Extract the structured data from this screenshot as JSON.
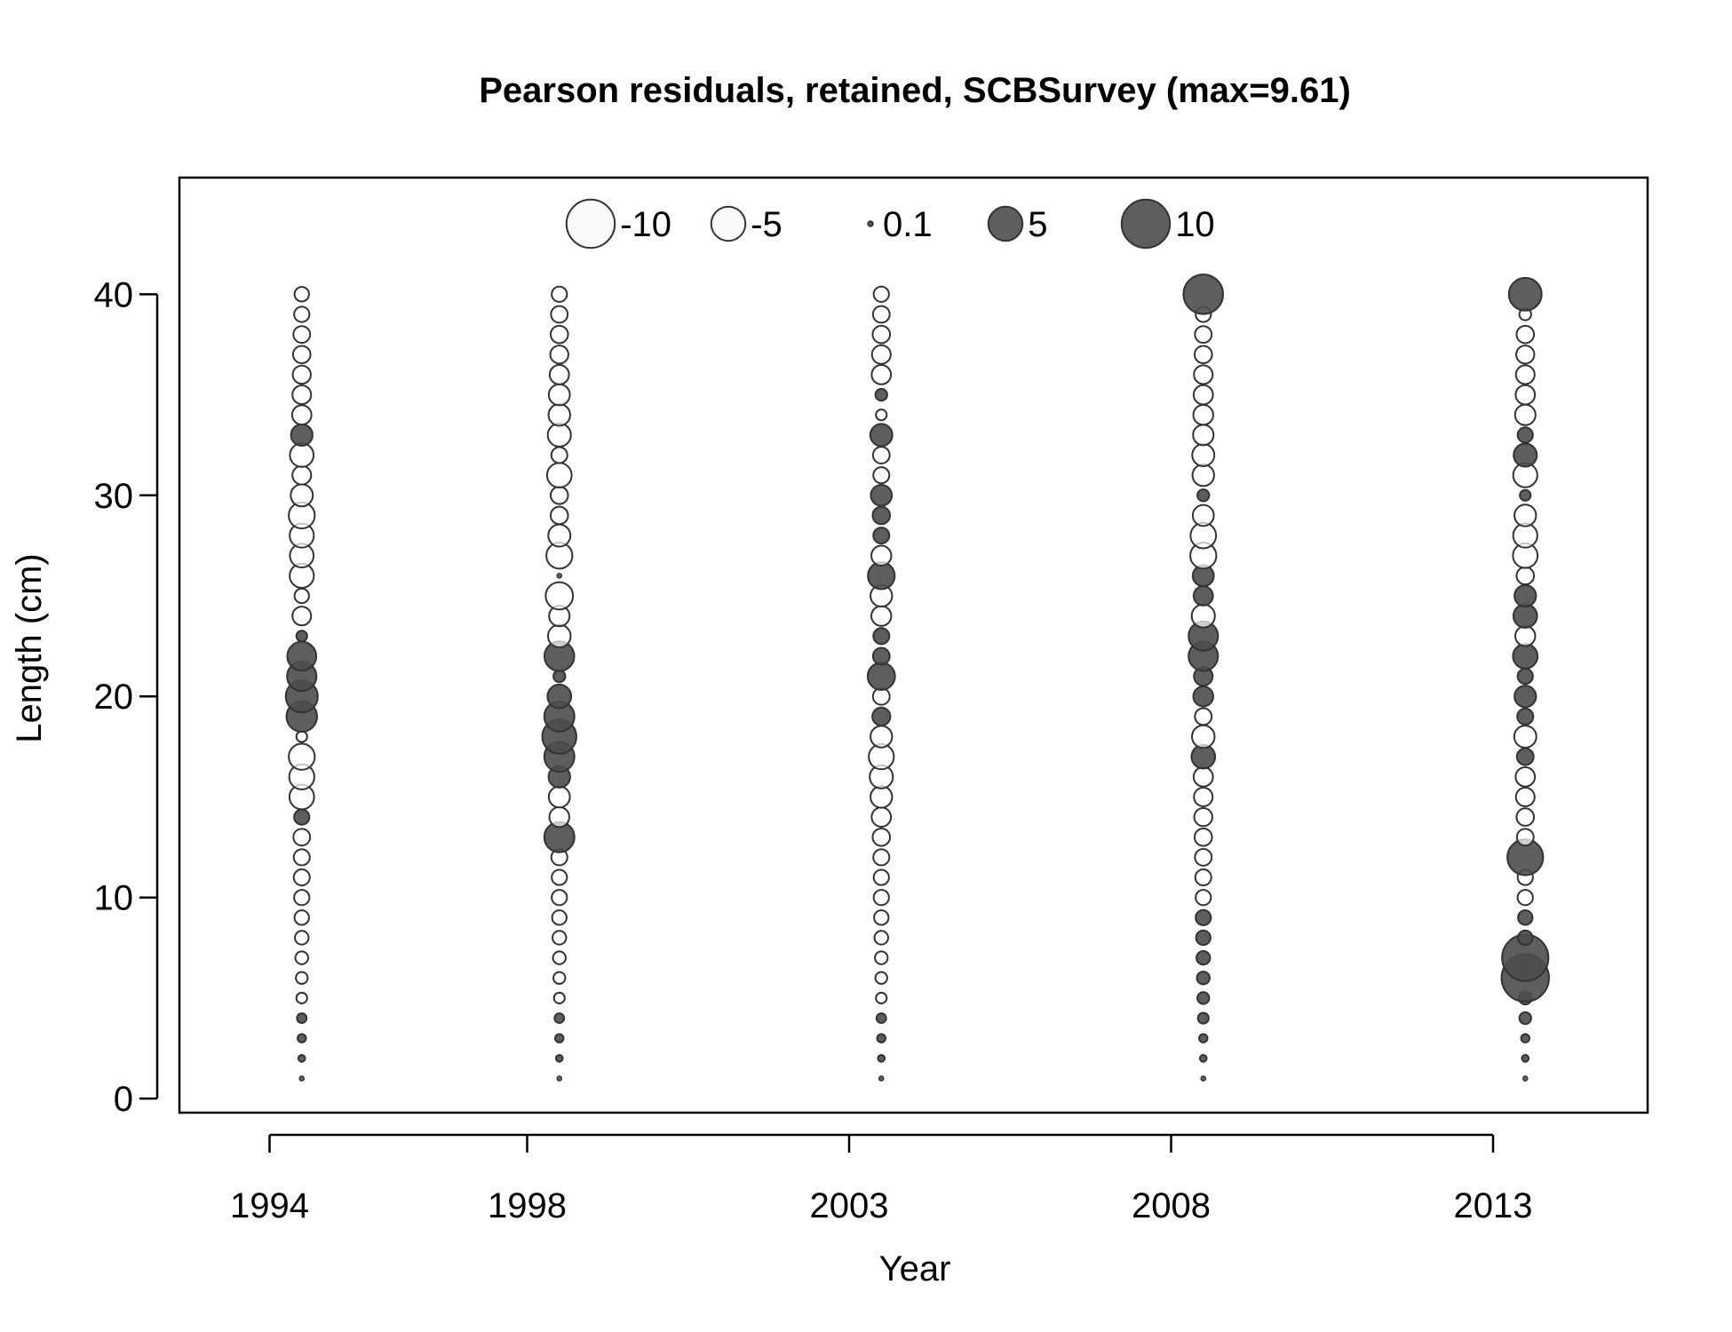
{
  "chart_data": {
    "type": "scatter",
    "subtype": "bubble",
    "title": "Pearson residuals, retained, SCBSurvey (max=9.61)",
    "xlabel": "Year",
    "ylabel": "Length (cm)",
    "x_ticks": [
      "1994",
      "1998",
      "2003",
      "2008",
      "2013"
    ],
    "y_ticks": [
      "0",
      "10",
      "20",
      "30",
      "40"
    ],
    "xlim": [
      1992.6,
      2015.4
    ],
    "ylim": [
      -0.7,
      45.8
    ],
    "grid": false,
    "legend": {
      "placement": "top",
      "entries": [
        {
          "label": "-10",
          "value": -10
        },
        {
          "label": "-5",
          "value": -5
        },
        {
          "label": "0.1",
          "value": 0.1
        },
        {
          "label": "5",
          "value": 5
        },
        {
          "label": "10",
          "value": 10
        }
      ]
    },
    "colors": {
      "positive_fill": "#4d4d4d",
      "negative_fill": "#ffffff",
      "stroke": "#333333"
    },
    "series": [
      {
        "x": 1994.5,
        "lengths": [
          1,
          2,
          3,
          4,
          5,
          6,
          7,
          8,
          9,
          10,
          11,
          12,
          13,
          14,
          15,
          16,
          17,
          18,
          19,
          20,
          21,
          22,
          23,
          24,
          25,
          26,
          27,
          28,
          29,
          30,
          31,
          32,
          33,
          34,
          35,
          36,
          37,
          38,
          39,
          40
        ],
        "residuals": [
          0.1,
          0.2,
          0.3,
          0.4,
          -0.5,
          -0.6,
          -0.7,
          -0.8,
          -0.9,
          -1.0,
          -1.1,
          -1.1,
          -1.2,
          1.0,
          -2.6,
          -2.7,
          -2.9,
          -0.5,
          4.0,
          4.4,
          3.7,
          3.6,
          0.5,
          -1.5,
          -0.9,
          -2.5,
          -2.4,
          -2.5,
          -2.9,
          -2.1,
          -1.5,
          -2.4,
          2.0,
          -1.6,
          -1.5,
          -1.4,
          -1.3,
          -1.2,
          -1.0,
          -0.9
        ]
      },
      {
        "x": 1998.5,
        "lengths": [
          1,
          2,
          3,
          4,
          5,
          6,
          7,
          8,
          9,
          10,
          11,
          12,
          13,
          14,
          15,
          16,
          17,
          18,
          19,
          20,
          21,
          22,
          23,
          24,
          25,
          26,
          27,
          28,
          29,
          30,
          31,
          32,
          33,
          34,
          35,
          36,
          37,
          38,
          39,
          40
        ],
        "residuals": [
          0.1,
          0.2,
          0.3,
          0.4,
          -0.5,
          -0.6,
          -0.7,
          -0.8,
          -0.9,
          -1.0,
          -1.0,
          -1.1,
          3.9,
          -1.7,
          -1.9,
          2.0,
          3.9,
          5.0,
          3.9,
          2.4,
          0.6,
          3.8,
          -2.2,
          -1.8,
          -3.2,
          0.1,
          -2.9,
          -2.1,
          -1.3,
          -1.3,
          -2.6,
          -1.1,
          -2.3,
          -2.0,
          -1.9,
          -1.6,
          -1.4,
          -1.3,
          -1.2,
          -1.0
        ]
      },
      {
        "x": 2003.5,
        "lengths": [
          1,
          2,
          3,
          4,
          5,
          6,
          7,
          8,
          9,
          10,
          11,
          12,
          13,
          14,
          15,
          16,
          17,
          18,
          19,
          20,
          21,
          22,
          23,
          24,
          25,
          26,
          27,
          28,
          29,
          30,
          31,
          32,
          33,
          34,
          35,
          36,
          37,
          38,
          39,
          40
        ],
        "residuals": [
          0.1,
          0.2,
          0.3,
          0.4,
          -0.5,
          -0.6,
          -0.7,
          -0.8,
          -0.9,
          -1.0,
          -1.0,
          -1.1,
          -1.3,
          -1.6,
          -2.0,
          -2.3,
          -2.7,
          -2.0,
          1.4,
          -1.2,
          3.2,
          1.2,
          1.1,
          -1.7,
          -2.0,
          3.1,
          -1.7,
          1.1,
          1.3,
          1.9,
          -1.1,
          -1.2,
          2.1,
          -0.5,
          0.6,
          -1.6,
          -1.5,
          -1.3,
          -1.2,
          -1.0
        ]
      },
      {
        "x": 2008.5,
        "lengths": [
          1,
          2,
          3,
          4,
          5,
          6,
          7,
          8,
          9,
          10,
          11,
          12,
          13,
          14,
          15,
          16,
          17,
          18,
          19,
          20,
          21,
          22,
          23,
          24,
          25,
          26,
          27,
          28,
          29,
          30,
          31,
          32,
          33,
          34,
          35,
          36,
          37,
          38,
          39,
          40
        ],
        "residuals": [
          0.1,
          0.2,
          0.3,
          0.5,
          0.6,
          0.7,
          0.8,
          0.9,
          1.0,
          -1.0,
          -1.1,
          -1.2,
          -1.3,
          -1.4,
          -1.5,
          -1.6,
          2.4,
          -2.2,
          -1.2,
          1.7,
          1.5,
          3.7,
          3.7,
          -2.3,
          1.6,
          1.9,
          -2.9,
          -2.8,
          -1.9,
          0.6,
          -2.0,
          -2.1,
          -1.8,
          -1.7,
          -1.6,
          -1.5,
          -1.3,
          -1.2,
          -1.0,
          6.7
        ]
      },
      {
        "x": 2013.5,
        "lengths": [
          1,
          2,
          3,
          4,
          5,
          6,
          7,
          8,
          9,
          10,
          11,
          12,
          13,
          14,
          15,
          16,
          17,
          18,
          19,
          20,
          21,
          22,
          23,
          24,
          25,
          26,
          27,
          28,
          29,
          30,
          31,
          32,
          33,
          34,
          35,
          36,
          37,
          38,
          39,
          40
        ],
        "residuals": [
          0.1,
          0.2,
          0.3,
          0.6,
          0.7,
          9.61,
          9.2,
          0.9,
          0.9,
          -1.0,
          -1.0,
          5.5,
          -1.2,
          -1.3,
          -1.5,
          -1.6,
          1.2,
          -2.1,
          1.1,
          2.0,
          1.0,
          2.6,
          -1.7,
          2.4,
          2.0,
          -1.3,
          -2.6,
          -2.5,
          -2.0,
          0.5,
          -2.5,
          2.3,
          1.0,
          -1.8,
          -1.6,
          -1.5,
          -1.4,
          -1.3,
          -0.6,
          4.6
        ]
      }
    ]
  }
}
